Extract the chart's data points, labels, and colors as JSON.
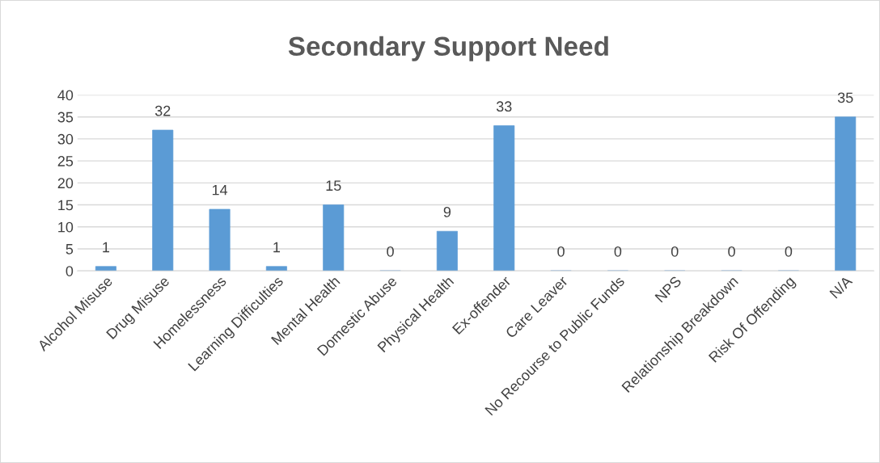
{
  "chart_data": {
    "type": "bar",
    "title": "Secondary Support Need",
    "categories": [
      "Alcohol Misuse",
      "Drug Misuse",
      "Homelessness",
      "Learning Difficulties",
      "Mental Health",
      "Domestic Abuse",
      "Physical Health",
      "Ex-offender",
      "Care Leaver",
      "No Recourse to Public Funds",
      "NPS",
      "Relationship Breakdown",
      "Risk Of Offending",
      "N/A"
    ],
    "values": [
      1,
      32,
      14,
      1,
      15,
      0,
      9,
      33,
      0,
      0,
      0,
      0,
      0,
      35
    ],
    "color": "#5b9bd5",
    "ylim": [
      0,
      40
    ],
    "yticks": [
      0,
      5,
      10,
      15,
      20,
      25,
      30,
      35,
      40
    ],
    "grid": "y",
    "data_labels": true,
    "legend": false
  }
}
